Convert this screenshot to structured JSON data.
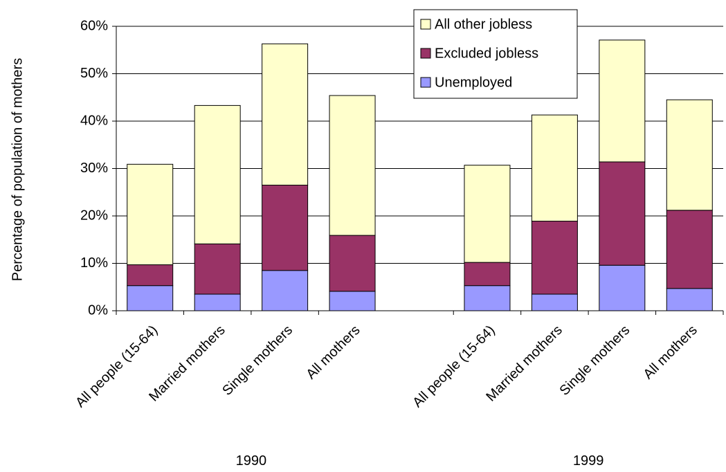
{
  "chart_data": {
    "type": "bar",
    "stacked": true,
    "ylabel": "Percentage of population of mothers",
    "ylim": [
      0,
      60
    ],
    "yticks": [
      "0%",
      "10%",
      "20%",
      "30%",
      "40%",
      "50%",
      "60%"
    ],
    "grid": true,
    "legend_position": "top-right",
    "groups": [
      {
        "label": "1990",
        "categories": [
          "All people (15-64)",
          "Married mothers",
          "Single mothers",
          "All mothers"
        ]
      },
      {
        "label": "1999",
        "categories": [
          "All people (15-64)",
          "Married mothers",
          "Single mothers",
          "All mothers"
        ]
      }
    ],
    "series": [
      {
        "name": "Unemployed",
        "color": "#9999ff",
        "values": [
          5.3,
          3.5,
          8.5,
          4.1,
          5.3,
          3.5,
          9.6,
          4.7
        ]
      },
      {
        "name": "Excluded jobless",
        "color": "#993366",
        "values": [
          4.4,
          10.6,
          18.0,
          11.8,
          4.9,
          15.4,
          21.8,
          16.5
        ]
      },
      {
        "name": "All other jobless",
        "color": "#ffffcc",
        "values": [
          21.2,
          29.2,
          29.8,
          29.5,
          20.5,
          22.4,
          25.7,
          23.3
        ]
      }
    ]
  }
}
